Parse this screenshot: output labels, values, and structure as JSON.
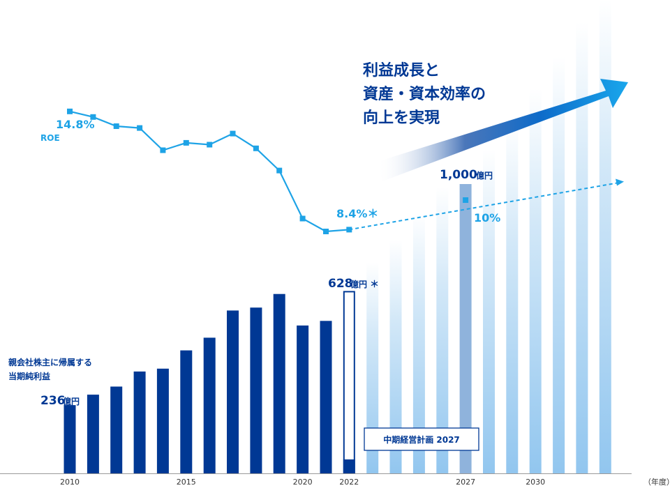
{
  "chart_data": {
    "type": "bar",
    "x": [
      2010,
      2011,
      2012,
      2013,
      2014,
      2015,
      2016,
      2017,
      2018,
      2019,
      2020,
      2021,
      2022,
      2023,
      2024,
      2025,
      2026,
      2027,
      2028,
      2029,
      2030,
      2031,
      2032,
      2033
    ],
    "x_tick_labels": [
      "2010",
      "2015",
      "2020",
      "2022",
      "2027",
      "2030"
    ],
    "x_unit_label": "（年度）",
    "net_income": {
      "label_line1": "親会社株主に帰属する",
      "label_line2": "当期純利益",
      "unit": "億円",
      "actual_x": [
        2010,
        2011,
        2012,
        2013,
        2014,
        2015,
        2016,
        2017,
        2018,
        2019,
        2020,
        2021
      ],
      "actual_values": [
        236,
        272,
        300,
        352,
        362,
        425,
        469,
        563,
        573,
        620,
        511,
        527
      ],
      "plan_x": [
        2022
      ],
      "plan_values": [
        628
      ],
      "projection_x": [
        2023,
        2024,
        2025,
        2026,
        2027,
        2028,
        2029,
        2030,
        2031,
        2032,
        2033
      ],
      "projection_values": [
        730,
        808,
        900,
        990,
        1000,
        1120,
        1220,
        1330,
        1440,
        1560,
        1680
      ],
      "highlight_x": 2027,
      "highlight_value": 1000,
      "annotation_start_value": "236",
      "annotation_start_unit": "億円",
      "annotation_2022_value": "628",
      "annotation_2022_unit": "億円",
      "annotation_2022_mark": "＊",
      "annotation_2027_value": "1,000",
      "annotation_2027_unit": "億円",
      "ylim": [
        0,
        1800
      ]
    },
    "roe": {
      "label": "ROE",
      "unit": "%",
      "x": [
        2010,
        2011,
        2012,
        2013,
        2014,
        2015,
        2016,
        2017,
        2018,
        2019,
        2020,
        2021,
        2022
      ],
      "values": [
        14.8,
        14.5,
        14.0,
        13.9,
        12.7,
        13.1,
        13.0,
        13.6,
        12.8,
        11.6,
        9.0,
        8.3,
        8.4
      ],
      "target_x": 2027,
      "target_value": 10,
      "arrow_end_x": 2033.8,
      "arrow_end_value": 11.0,
      "annotation_start": "14.8%",
      "annotation_2022": "8.4%＊",
      "annotation_target": "10%",
      "ylim": [
        0,
        19.5
      ]
    },
    "plan_box_label": "中期経営計画 2027",
    "headline": [
      "利益成長と",
      "資産・資本効率の",
      "向上を実現"
    ],
    "colors": {
      "navy": "#003894",
      "cyan": "#1ea3e6",
      "light_bar": "#a9d4f2",
      "highlight_bar": "#8fb3dc"
    }
  }
}
